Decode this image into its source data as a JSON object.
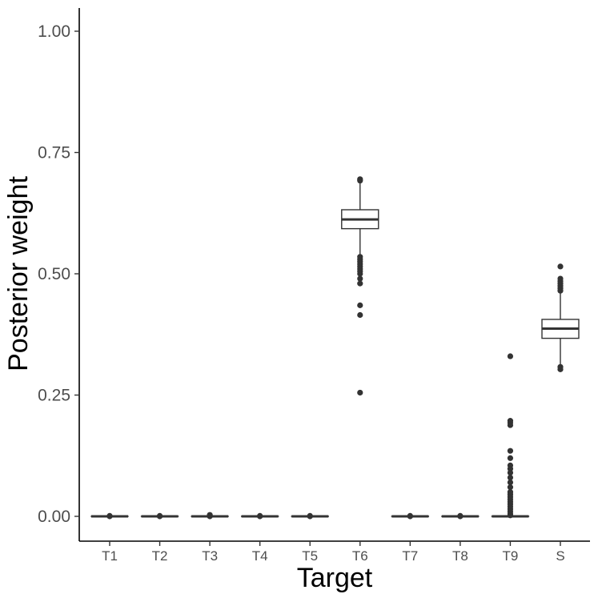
{
  "chart_data": {
    "type": "boxplot",
    "xlabel": "Target",
    "ylabel": "Posterior weight",
    "ylim": [
      -0.05,
      1.05
    ],
    "y_ticks": [
      0.0,
      0.25,
      0.5,
      0.75,
      1.0
    ],
    "y_tick_labels": [
      "0.00",
      "0.25",
      "0.50",
      "0.75",
      "1.00"
    ],
    "grid": false,
    "legend": "none",
    "categories": [
      "T1",
      "T2",
      "T3",
      "T4",
      "T5",
      "T6",
      "T7",
      "T8",
      "T9",
      "S"
    ],
    "boxes": [
      {
        "category": "T1",
        "min": 0.0,
        "q1": 0.0,
        "median": 0.0,
        "q3": 0.0,
        "max": 0.0,
        "outliers": [
          0.0,
          0.001
        ]
      },
      {
        "category": "T2",
        "min": 0.0,
        "q1": 0.0,
        "median": 0.0,
        "q3": 0.0,
        "max": 0.0,
        "outliers": [
          0.0,
          0.001
        ]
      },
      {
        "category": "T3",
        "min": 0.0,
        "q1": 0.0,
        "median": 0.0,
        "q3": 0.0,
        "max": 0.0,
        "outliers": [
          0.0,
          0.001,
          0.003
        ]
      },
      {
        "category": "T4",
        "min": 0.0,
        "q1": 0.0,
        "median": 0.0,
        "q3": 0.0,
        "max": 0.0,
        "outliers": [
          0.0,
          0.001
        ]
      },
      {
        "category": "T5",
        "min": 0.0,
        "q1": 0.0,
        "median": 0.0,
        "q3": 0.0,
        "max": 0.0,
        "outliers": [
          0.0,
          0.001
        ]
      },
      {
        "category": "T6",
        "min": 0.535,
        "q1": 0.593,
        "median": 0.612,
        "q3": 0.632,
        "max": 0.69,
        "outliers": [
          0.695,
          0.692,
          0.535,
          0.53,
          0.525,
          0.52,
          0.515,
          0.51,
          0.505,
          0.5,
          0.49,
          0.48,
          0.435,
          0.415,
          0.255
        ]
      },
      {
        "category": "T7",
        "min": 0.0,
        "q1": 0.0,
        "median": 0.0,
        "q3": 0.0,
        "max": 0.0,
        "outliers": [
          0.0,
          0.001
        ]
      },
      {
        "category": "T8",
        "min": 0.0,
        "q1": 0.0,
        "median": 0.0,
        "q3": 0.0,
        "max": 0.0,
        "outliers": [
          0.0,
          0.001
        ]
      },
      {
        "category": "T9",
        "min": 0.0,
        "q1": 0.0,
        "median": 0.0,
        "q3": 0.0,
        "max": 0.0,
        "outliers": [
          0.33,
          0.197,
          0.193,
          0.188,
          0.135,
          0.12,
          0.105,
          0.098,
          0.09,
          0.08,
          0.07,
          0.06,
          0.05,
          0.045,
          0.04,
          0.035,
          0.03,
          0.025,
          0.02,
          0.015,
          0.01,
          0.005,
          0.002
        ]
      },
      {
        "category": "S",
        "min": 0.312,
        "q1": 0.367,
        "median": 0.387,
        "q3": 0.406,
        "max": 0.46,
        "outliers": [
          0.515,
          0.49,
          0.485,
          0.48,
          0.475,
          0.47,
          0.465,
          0.308,
          0.303
        ]
      }
    ]
  }
}
